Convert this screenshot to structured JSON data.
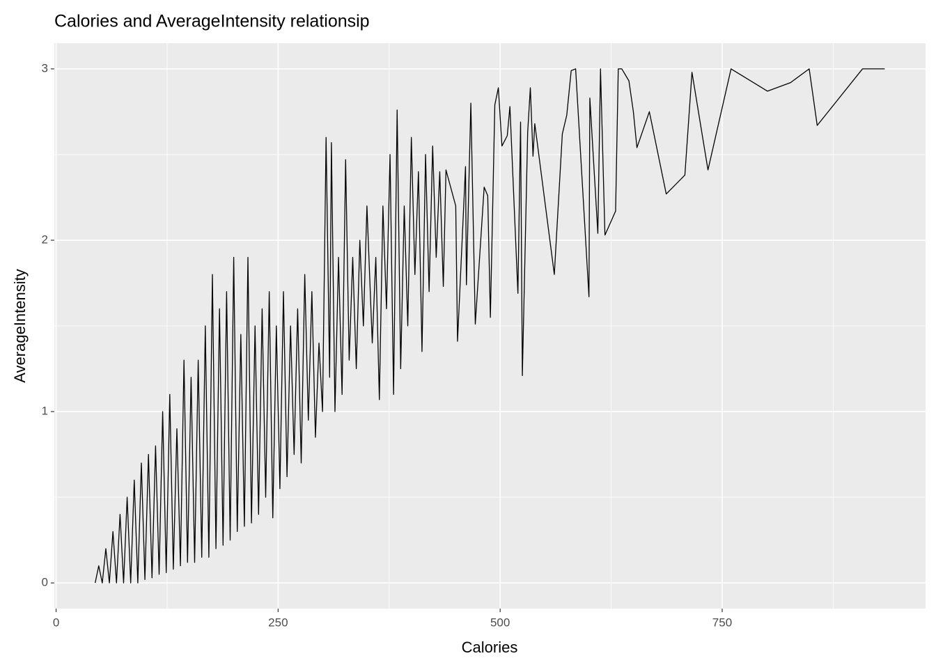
{
  "chart_data": {
    "type": "line",
    "title": "Calories and AverageIntensity relationsip",
    "x_label": "Calories",
    "y_label": "AverageIntensity",
    "x": [
      44,
      48,
      52,
      56,
      60,
      64,
      68,
      72,
      76,
      80,
      84,
      88,
      92,
      96,
      100,
      104,
      108,
      112,
      116,
      120,
      124,
      128,
      132,
      136,
      140,
      144,
      148,
      152,
      156,
      160,
      164,
      168,
      172,
      176,
      180,
      184,
      188,
      192,
      196,
      200,
      204,
      208,
      212,
      216,
      220,
      224,
      228,
      232,
      236,
      240,
      244,
      248,
      252,
      256,
      260,
      264,
      268,
      272,
      276,
      280,
      284,
      288,
      292,
      296,
      300,
      304,
      308,
      310,
      314,
      318,
      322,
      326,
      330,
      334,
      338,
      342,
      346,
      350,
      356,
      360,
      364,
      368,
      372,
      376,
      380,
      384,
      388,
      392,
      396,
      400,
      404,
      408,
      412,
      416,
      420,
      424,
      428,
      432,
      436,
      439,
      450,
      452,
      461,
      462,
      467,
      472,
      482,
      486,
      489,
      494,
      498,
      502,
      508,
      511,
      520,
      523,
      525,
      531,
      534,
      537,
      539,
      561,
      570,
      575,
      580,
      585,
      600,
      601,
      610,
      613,
      618,
      630,
      633,
      637,
      645,
      650,
      654,
      668,
      687,
      708,
      716,
      734,
      760,
      801,
      827,
      848,
      857,
      908,
      933
    ],
    "series": [
      {
        "name": "AverageIntensity",
        "color": "#000000",
        "values": [
          0,
          0.1,
          0,
          0.2,
          0,
          0.3,
          0,
          0.4,
          0,
          0.5,
          0,
          0.6,
          0,
          0.7,
          0.02,
          0.75,
          0.03,
          0.8,
          0.05,
          1.0,
          0.06,
          1.1,
          0.08,
          0.9,
          0.1,
          1.3,
          0.12,
          1.2,
          0.12,
          1.3,
          0.15,
          1.5,
          0.15,
          1.8,
          0.2,
          1.6,
          0.22,
          1.7,
          0.25,
          1.9,
          0.3,
          1.45,
          0.33,
          1.9,
          0.35,
          1.5,
          0.4,
          1.6,
          0.5,
          1.7,
          0.38,
          1.5,
          0.55,
          1.7,
          0.62,
          1.5,
          0.75,
          1.6,
          0.7,
          1.8,
          0.95,
          1.7,
          0.85,
          1.4,
          1.0,
          2.6,
          1.2,
          2.57,
          1.0,
          1.9,
          1.1,
          2.47,
          1.3,
          1.9,
          1.25,
          2.0,
          1.5,
          2.2,
          1.4,
          1.9,
          1.07,
          2.2,
          1.6,
          2.5,
          1.1,
          2.76,
          1.25,
          2.2,
          1.5,
          2.6,
          1.8,
          2.4,
          1.35,
          2.5,
          1.7,
          2.55,
          1.9,
          2.4,
          1.73,
          2.41,
          2.2,
          1.41,
          2.43,
          1.74,
          2.8,
          1.51,
          2.31,
          2.26,
          1.55,
          2.79,
          2.89,
          2.55,
          2.61,
          2.78,
          1.69,
          2.69,
          1.21,
          2.63,
          2.89,
          2.49,
          2.68,
          1.8,
          2.62,
          2.73,
          2.99,
          3.0,
          1.67,
          2.83,
          2.04,
          3.0,
          2.03,
          2.17,
          3.0,
          3.0,
          2.93,
          2.75,
          2.54,
          2.75,
          2.27,
          2.38,
          2.98,
          2.41,
          3.0,
          2.87,
          2.92,
          3.0,
          2.67,
          3.0,
          3.0
        ]
      }
    ],
    "xlim": [
      -2,
      979
    ],
    "ylim": [
      -0.15,
      3.15
    ],
    "xticks": [
      0,
      250,
      500,
      750
    ],
    "yticks": [
      0,
      1,
      2,
      3
    ],
    "xminor": [
      125,
      375,
      625,
      875
    ],
    "yminor": [
      0.5,
      1.5,
      2.5
    ],
    "grid": true
  }
}
